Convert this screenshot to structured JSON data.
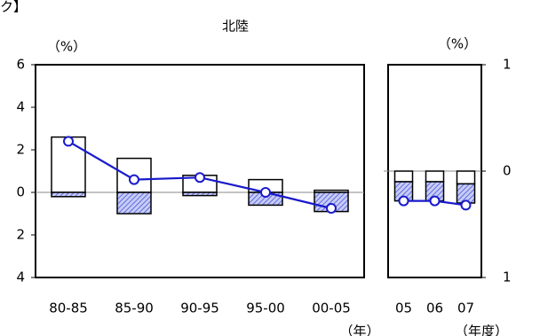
{
  "page_fragment": "ク】",
  "title": "北陸",
  "chart_data": [
    {
      "type": "stacked_bar_line",
      "y_label": "（%）",
      "x_label": "（年）",
      "categories": [
        "80-85",
        "85-90",
        "90-95",
        "95-00",
        "00-05"
      ],
      "series": [
        {
          "kind": "bar",
          "color": "#ffffff",
          "values": [
            2.6,
            1.6,
            0.8,
            0.6,
            0.1
          ]
        },
        {
          "kind": "bar",
          "color": "#4455dd",
          "pattern": "hatch",
          "values": [
            -0.2,
            -1.0,
            -0.15,
            -0.6,
            -0.9
          ]
        },
        {
          "kind": "line",
          "color": "#1a1acc",
          "values": [
            2.4,
            0.6,
            0.7,
            0.0,
            -0.75
          ]
        }
      ],
      "ylim": [
        -4,
        6
      ],
      "yticks": [
        {
          "value": -4,
          "label": "4"
        },
        {
          "value": -2,
          "label": "2"
        },
        0,
        2,
        4,
        6
      ],
      "y_axis_side": "left"
    },
    {
      "type": "stacked_bar_line",
      "y_label": "（%）",
      "x_label": "（年度）",
      "categories": [
        "05",
        "06",
        "07"
      ],
      "series": [
        {
          "kind": "bar",
          "color": "#ffffff",
          "values": [
            -0.1,
            -0.1,
            -0.12
          ]
        },
        {
          "kind": "bar",
          "color": "#4455dd",
          "pattern": "hatch",
          "values": [
            -0.18,
            -0.18,
            -0.18
          ]
        },
        {
          "kind": "line",
          "color": "#1a1acc",
          "values": [
            -0.28,
            -0.28,
            -0.32
          ]
        }
      ],
      "ylim": [
        -1,
        1
      ],
      "yticks": [
        {
          "value": -1,
          "label": "1"
        },
        0,
        1
      ],
      "y_axis_side": "right"
    }
  ]
}
